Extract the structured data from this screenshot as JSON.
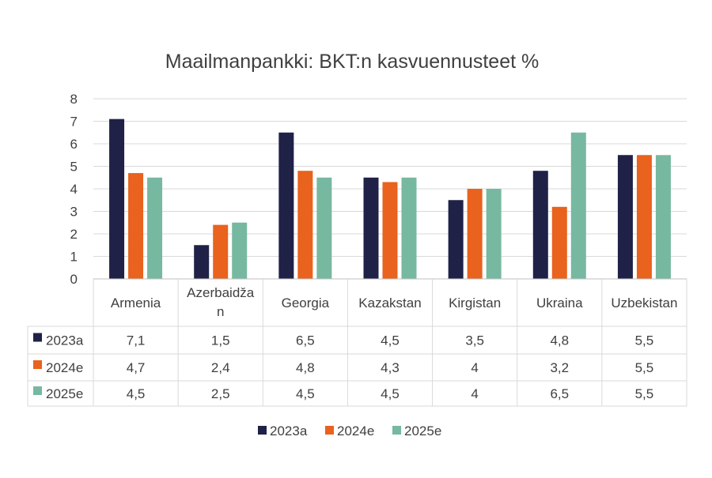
{
  "chart_data": {
    "type": "bar",
    "title": "Maailmanpankki: BKT:n kasvuennusteet %",
    "categories": [
      "Armenia",
      "Azerbaidžan",
      "Georgia",
      "Kazakstan",
      "Kirgistan",
      "Ukraina",
      "Uzbekistan"
    ],
    "category_labels_wrapped": [
      [
        "Armenia"
      ],
      [
        "Azerbaidža",
        "n"
      ],
      [
        "Georgia"
      ],
      [
        "Kazakstan"
      ],
      [
        "Kirgistan"
      ],
      [
        "Ukraina"
      ],
      [
        "Uzbekistan"
      ]
    ],
    "series": [
      {
        "name": "2023a",
        "color": "#1f2147",
        "values": [
          7.1,
          1.5,
          6.5,
          4.5,
          3.5,
          4.8,
          5.5
        ],
        "labels": [
          "7,1",
          "1,5",
          "6,5",
          "4,5",
          "3,5",
          "4,8",
          "5,5"
        ]
      },
      {
        "name": "2024e",
        "color": "#e9621e",
        "values": [
          4.7,
          2.4,
          4.8,
          4.3,
          4,
          3.2,
          5.5
        ],
        "labels": [
          "4,7",
          "2,4",
          "4,8",
          "4,3",
          "4",
          "3,2",
          "5,5"
        ]
      },
      {
        "name": "2025e",
        "color": "#77b8a0",
        "values": [
          4.5,
          2.5,
          4.5,
          4.5,
          4,
          6.5,
          5.5
        ],
        "labels": [
          "4,5",
          "2,5",
          "4,5",
          "4,5",
          "4",
          "6,5",
          "5,5"
        ]
      }
    ],
    "ylim": [
      0,
      8
    ],
    "yticks": [
      "0",
      "1",
      "2",
      "3",
      "4",
      "5",
      "6",
      "7",
      "8"
    ],
    "grid": true,
    "legend": "bottom",
    "data_table": true
  }
}
